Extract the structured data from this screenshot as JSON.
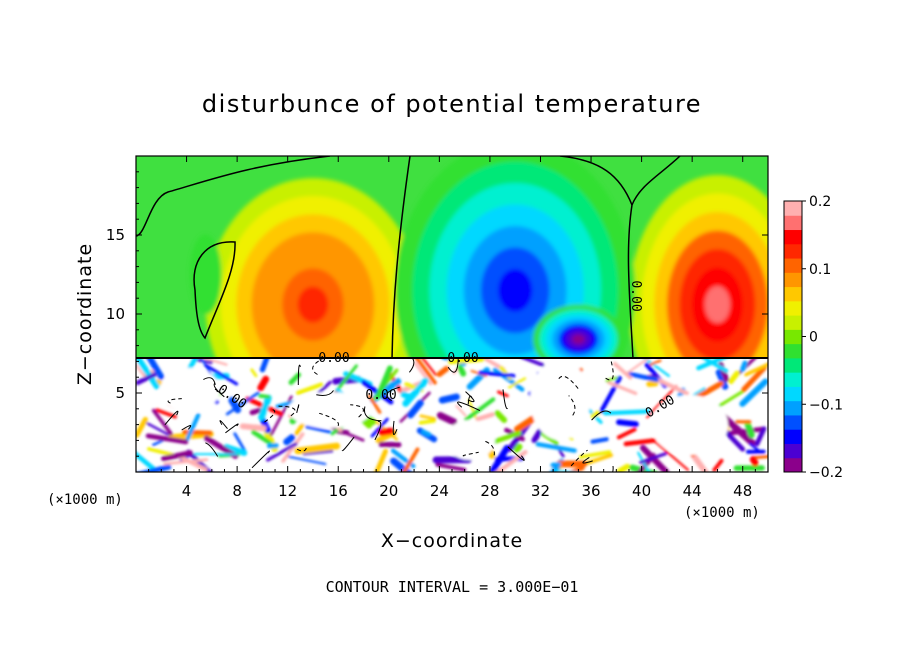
{
  "chart_data": {
    "type": "heatmap",
    "title": "disturbunce of potential temperature",
    "xlabel": "X−coordinate",
    "ylabel": "Z−coordinate",
    "x_ticks": [
      4,
      8,
      12,
      16,
      20,
      24,
      28,
      32,
      36,
      40,
      44,
      48
    ],
    "x_tick_labels": [
      "4",
      "8",
      "12",
      "16",
      "20",
      "24",
      "28",
      "32",
      "36",
      "40",
      "44",
      "48"
    ],
    "y_ticks": [
      5,
      10,
      15
    ],
    "y_tick_labels": [
      "5",
      "10",
      "15"
    ],
    "xlim": [
      0,
      50
    ],
    "ylim": [
      0,
      20
    ],
    "x_unit_label": "(×1000 m)",
    "colorbar": {
      "range": [
        -0.2,
        0.2
      ],
      "tick_values": [
        0.2,
        0.1,
        0,
        -0.1,
        -0.2
      ],
      "tick_labels": [
        "0.2",
        "0.1",
        "0",
        "−0.1",
        "−0.2"
      ],
      "colors": [
        "#8b008b",
        "#4b00d2",
        "#0000ff",
        "#0050ff",
        "#00a0ff",
        "#00d8ff",
        "#00f0d0",
        "#00e878",
        "#30e030",
        "#78e800",
        "#c8f000",
        "#f0f000",
        "#ffc800",
        "#ff9600",
        "#ff6400",
        "#ff2800",
        "#ff0000",
        "#ff7070",
        "#ffb0b0"
      ]
    },
    "contour_labels": [
      "0.00",
      "0.00",
      "0.00",
      "0.00",
      "0.00",
      "0.00"
    ],
    "footer": "CONTOUR INTERVAL = 3.000E−01",
    "upper_region_features": [
      {
        "kind": "warm",
        "x": 14,
        "z": 10.5,
        "amp": 0.13
      },
      {
        "kind": "warm",
        "x": 46,
        "z": 10.5,
        "amp": 0.16
      },
      {
        "kind": "cold",
        "x": 29,
        "z": 12,
        "amp": -0.13
      },
      {
        "kind": "cold",
        "x": 35,
        "z": 8.5,
        "amp": -0.2
      }
    ],
    "boundary_z": 7.3
  }
}
